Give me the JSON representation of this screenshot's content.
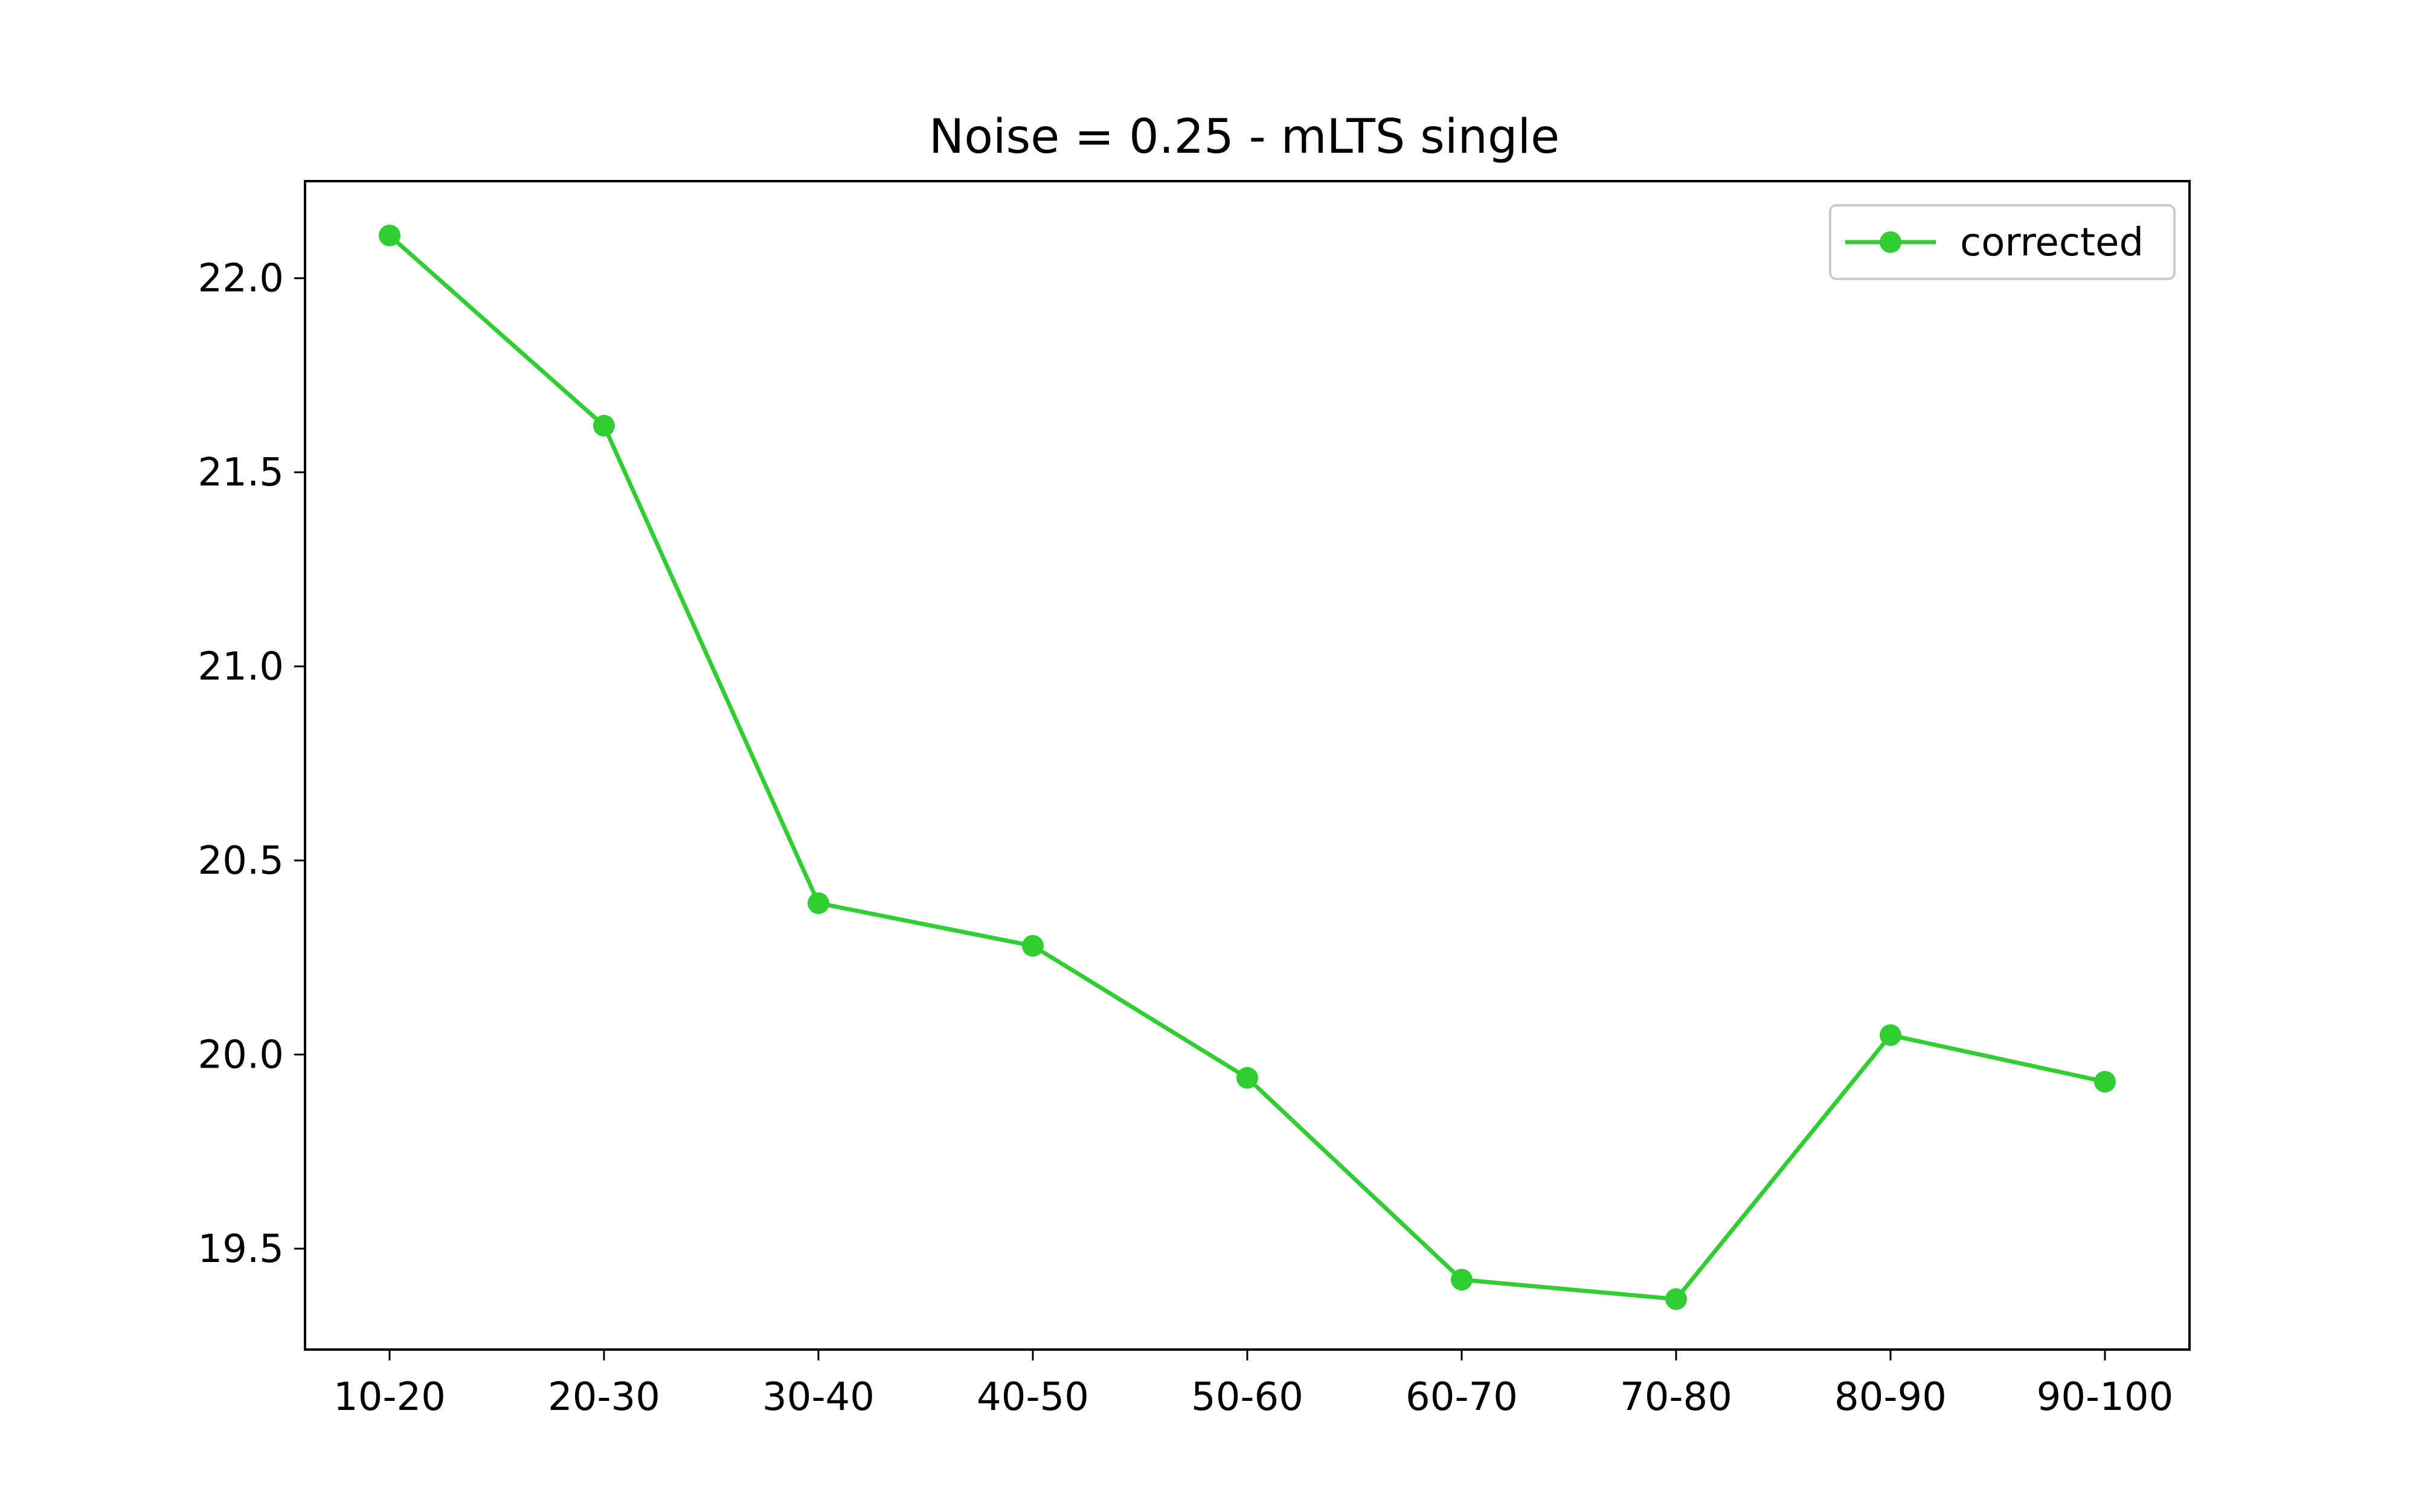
{
  "chart_data": {
    "type": "line",
    "title": "Noise = 0.25 - mLTS single",
    "xlabel": "",
    "ylabel": "",
    "categories": [
      "10-20",
      "20-30",
      "30-40",
      "40-50",
      "50-60",
      "60-70",
      "70-80",
      "80-90",
      "90-100"
    ],
    "series": [
      {
        "name": "corrected",
        "color": "#32cd32",
        "marker": "circle",
        "values": [
          22.11,
          21.62,
          20.39,
          20.28,
          19.94,
          19.42,
          19.37,
          20.05,
          19.93
        ]
      }
    ],
    "ylim": [
      19.24,
      22.25
    ],
    "yticks": [
      19.5,
      20.0,
      20.5,
      21.0,
      21.5,
      22.0
    ],
    "ytick_labels": [
      "19.5",
      "20.0",
      "20.5",
      "21.0",
      "21.5",
      "22.0"
    ],
    "grid": false,
    "legend_position": "top-right"
  }
}
